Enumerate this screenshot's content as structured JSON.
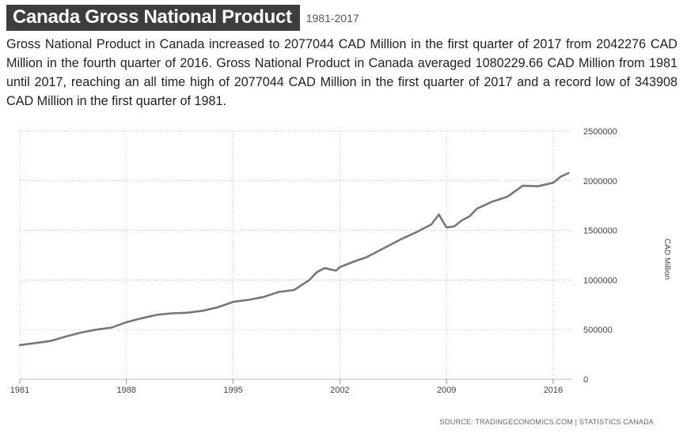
{
  "header": {
    "title": "Canada Gross National Product",
    "subtitle": "1981-2017"
  },
  "summary": "Gross National Product in Canada increased to 2077044 CAD Million in the first quarter of 2017 from 2042276 CAD Million in the fourth quarter of 2016. Gross National Product in Canada averaged 1080229.66 CAD Million from 1981 until 2017, reaching an all time high of 2077044 CAD Million in the first quarter of 2017 and a record low of 343908 CAD Million in the first quarter of 1981.",
  "source": "SOURCE: TRADINGECONOMICS.COM | STATISTICS CANADA",
  "chart_data": {
    "type": "line",
    "title": "",
    "xlabel": "",
    "ylabel": "CAD Million",
    "x_ticks": [
      "1981",
      "1988",
      "1995",
      "2002",
      "2009",
      "2016"
    ],
    "y_ticks": [
      "2500000",
      "2000000",
      "1500000",
      "1000000",
      "500000",
      "0"
    ],
    "xlim": [
      1981,
      2017.25
    ],
    "ylim": [
      0,
      2500000
    ],
    "grid": true,
    "line_color": "#777777",
    "series": [
      {
        "name": "",
        "x": [
          1981,
          1982,
          1983,
          1984,
          1985,
          1986,
          1987,
          1988,
          1989,
          1990,
          1991,
          1992,
          1993,
          1994,
          1995,
          1996,
          1997,
          1998,
          1999,
          2000,
          2000.5,
          2001,
          2001.75,
          2002,
          2003,
          2003.75,
          2004,
          2005,
          2006,
          2007,
          2008,
          2008.5,
          2009,
          2009.5,
          2010,
          2010.5,
          2011,
          2012,
          2013,
          2014,
          2015,
          2016,
          2016.5,
          2017
        ],
        "values": [
          343908,
          365000,
          385000,
          430000,
          470000,
          500000,
          520000,
          575000,
          615000,
          650000,
          665000,
          670000,
          690000,
          725000,
          780000,
          800000,
          830000,
          880000,
          900000,
          1000000,
          1080000,
          1120000,
          1095000,
          1130000,
          1190000,
          1230000,
          1250000,
          1330000,
          1410000,
          1480000,
          1560000,
          1660000,
          1530000,
          1540000,
          1600000,
          1640000,
          1720000,
          1790000,
          1840000,
          1950000,
          1945000,
          1980000,
          2042276,
          2077044
        ]
      }
    ]
  }
}
